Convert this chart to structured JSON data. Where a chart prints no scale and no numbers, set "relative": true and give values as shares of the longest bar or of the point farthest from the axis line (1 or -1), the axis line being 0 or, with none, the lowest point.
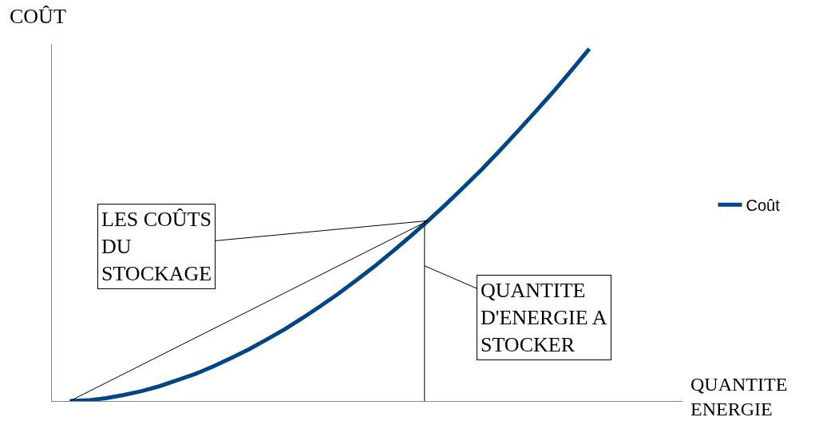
{
  "chart_data": {
    "type": "line",
    "relative": true,
    "ylabel": "COÛT",
    "xlabel": "QUANTITE\nENERGIE",
    "categories": [
      null,
      null,
      null,
      null,
      null,
      null,
      null,
      null,
      null,
      null,
      null,
      null,
      null,
      null,
      null,
      null,
      null,
      null,
      null,
      null,
      null,
      null,
      null,
      null,
      null,
      null,
      null,
      null,
      null,
      null,
      null,
      null,
      null,
      null,
      null
    ],
    "series": [
      {
        "name": "Coût",
        "color": "#004586",
        "values": [
          0,
          0.002,
          0.008,
          0.017,
          0.028,
          0.042,
          0.059,
          0.077,
          0.098,
          0.122,
          0.147,
          0.175,
          0.204,
          0.236,
          0.27,
          0.305,
          0.343,
          0.382,
          0.424,
          0.467,
          0.512,
          0.559,
          0.608,
          0.658,
          0.711,
          0.766,
          0.822,
          0.879,
          0.939,
          1,
          null,
          null,
          null,
          null,
          null
        ]
      },
      {
        "color": "#000000",
        "values": [
          0,
          null,
          null,
          null,
          null,
          null,
          null,
          null,
          null,
          null,
          null,
          null,
          null,
          null,
          null,
          null,
          null,
          null,
          null,
          null,
          0.512,
          null,
          null,
          null,
          null,
          null,
          null,
          null,
          null,
          null,
          null,
          null,
          null,
          null,
          null
        ]
      }
    ],
    "annotations": [
      "LES COÛTS\nDU\nSTOCKAGE",
      "QUANTITE\nD'ENERGIE A\nSTOCKER"
    ],
    "legend": "right",
    "grid": false,
    "marker": "none"
  }
}
